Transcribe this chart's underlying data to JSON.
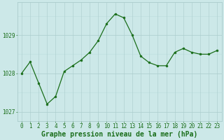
{
  "hours": [
    0,
    1,
    2,
    3,
    4,
    5,
    6,
    7,
    8,
    9,
    10,
    11,
    12,
    13,
    14,
    15,
    16,
    17,
    18,
    19,
    20,
    21,
    22,
    23
  ],
  "pressure": [
    1028.0,
    1028.3,
    1027.75,
    1027.2,
    1027.4,
    1028.05,
    1028.2,
    1028.35,
    1028.55,
    1028.85,
    1029.3,
    1029.55,
    1029.45,
    1029.0,
    1028.45,
    1028.28,
    1028.2,
    1028.2,
    1028.55,
    1028.65,
    1028.55,
    1028.5,
    1028.5,
    1028.6
  ],
  "line_color": "#1a6e1a",
  "marker_color": "#1a6e1a",
  "bg_color": "#cce8e8",
  "grid_color_major": "#aacccc",
  "grid_color_minor": "#bbdddd",
  "ylabel_ticks": [
    1027,
    1028,
    1029
  ],
  "ylim": [
    1026.75,
    1029.85
  ],
  "xlim": [
    -0.5,
    23.5
  ],
  "xlabel": "Graphe pression niveau de la mer (hPa)",
  "xlabel_fontsize": 7,
  "tick_fontsize": 5.5,
  "marker_size": 2.0,
  "line_width": 0.9
}
